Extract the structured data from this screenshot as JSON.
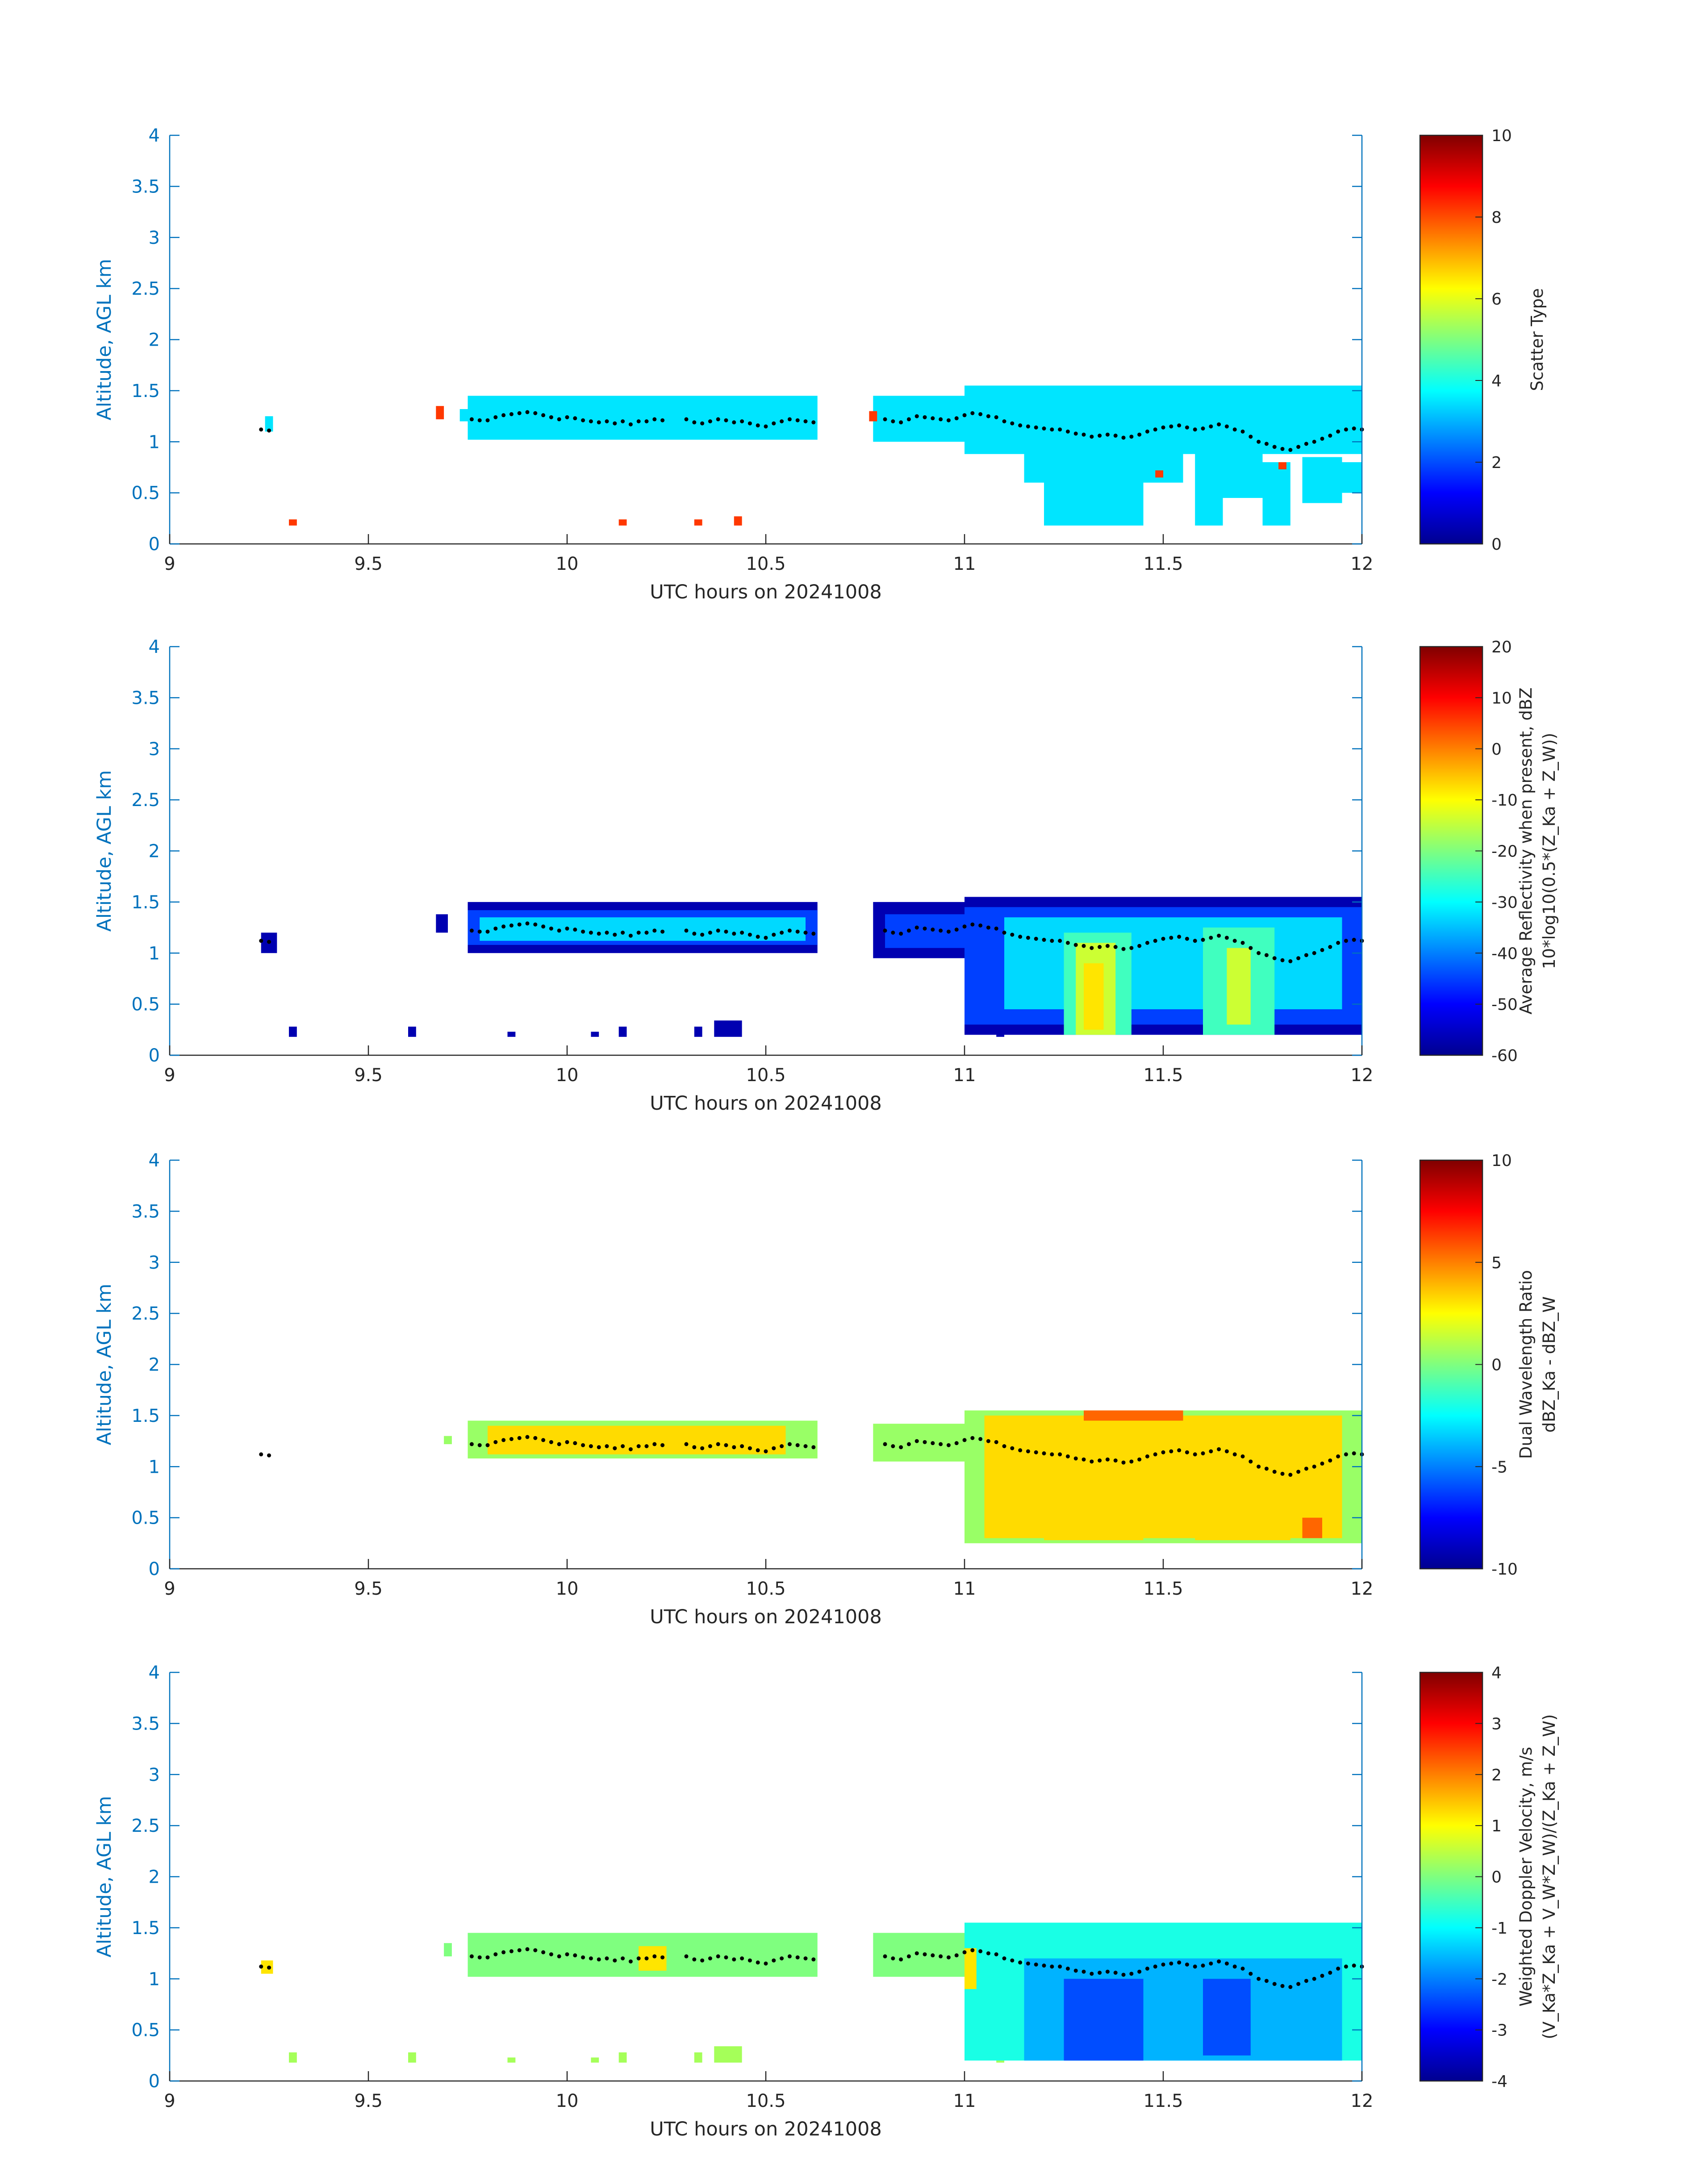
{
  "figure": {
    "date_label": "UTC hours on 20241008"
  },
  "chart_data": [
    {
      "type": "heatmap",
      "id": "scatter-type",
      "xlabel": "UTC hours on 20241008",
      "ylabel": "Altitude, AGL km",
      "xlim": [
        9,
        12
      ],
      "ylim": [
        0,
        4
      ],
      "xticks": [
        9,
        9.5,
        10,
        10.5,
        11,
        11.5,
        12
      ],
      "yticks": [
        0,
        0.5,
        1,
        1.5,
        2,
        2.5,
        3,
        3.5,
        4
      ],
      "colorbar": {
        "label_lines": [
          "Scatter Type"
        ],
        "min": 0,
        "max": 10,
        "ticks": [
          0,
          2,
          4,
          6,
          8,
          10
        ]
      },
      "layers": [
        {
          "value": 3.5,
          "segments": [
            [
              9.24,
              9.26,
              1.1,
              1.25
            ],
            [
              9.73,
              9.75,
              1.2,
              1.32
            ],
            [
              9.75,
              10.63,
              1.02,
              1.45
            ],
            [
              10.77,
              11.0,
              1.0,
              1.45
            ],
            [
              11.0,
              12.0,
              0.88,
              1.55
            ]
          ]
        },
        {
          "value": 3.5,
          "segments": [
            [
              11.05,
              11.15,
              0.9,
              1.05
            ],
            [
              11.15,
              11.2,
              0.6,
              0.9
            ],
            [
              11.2,
              11.45,
              0.18,
              1.0
            ],
            [
              11.45,
              11.55,
              0.6,
              0.9
            ],
            [
              11.58,
              11.65,
              0.18,
              1.0
            ],
            [
              11.65,
              11.75,
              0.45,
              0.95
            ],
            [
              11.75,
              11.82,
              0.18,
              0.8
            ],
            [
              11.85,
              11.95,
              0.4,
              0.85
            ],
            [
              11.95,
              12.0,
              0.5,
              0.8
            ]
          ]
        },
        {
          "value": 8.2,
          "segments": [
            [
              9.3,
              9.32,
              0.18,
              0.24
            ],
            [
              9.67,
              9.69,
              1.22,
              1.35
            ],
            [
              10.13,
              10.15,
              0.18,
              0.24
            ],
            [
              10.32,
              10.34,
              0.18,
              0.24
            ],
            [
              10.42,
              10.44,
              0.18,
              0.27
            ],
            [
              10.76,
              10.78,
              1.2,
              1.3
            ],
            [
              11.48,
              11.5,
              0.65,
              0.72
            ],
            [
              11.79,
              11.81,
              0.73,
              0.8
            ]
          ]
        }
      ]
    },
    {
      "type": "heatmap",
      "id": "average-reflectivity",
      "xlabel": "UTC hours on 20241008",
      "ylabel": "Altitude, AGL km",
      "xlim": [
        9,
        12
      ],
      "ylim": [
        0,
        4
      ],
      "xticks": [
        9,
        9.5,
        10,
        10.5,
        11,
        11.5,
        12
      ],
      "yticks": [
        0,
        0.5,
        1,
        1.5,
        2,
        2.5,
        3,
        3.5,
        4
      ],
      "colorbar": {
        "label_lines": [
          "Average Reflectivity when present, dBZ",
          "10*log10(0.5*(Z_Ka + Z_W))"
        ],
        "min": -60,
        "max": 20,
        "ticks": [
          -60,
          -50,
          -40,
          -30,
          -20,
          -10,
          0,
          10,
          20
        ]
      },
      "layers": [
        {
          "value": -57,
          "segments": [
            [
              9.23,
              9.27,
              1.0,
              1.2
            ],
            [
              9.3,
              9.32,
              0.18,
              0.28
            ],
            [
              9.6,
              9.62,
              0.18,
              0.28
            ],
            [
              9.67,
              9.7,
              1.2,
              1.38
            ],
            [
              9.75,
              10.63,
              1.0,
              1.5
            ],
            [
              10.77,
              11.0,
              0.95,
              1.5
            ],
            [
              11.0,
              12.0,
              0.2,
              1.55
            ],
            [
              9.85,
              9.87,
              0.18,
              0.23
            ],
            [
              10.06,
              10.08,
              0.18,
              0.23
            ],
            [
              10.13,
              10.15,
              0.18,
              0.28
            ],
            [
              10.32,
              10.34,
              0.18,
              0.28
            ],
            [
              10.37,
              10.44,
              0.18,
              0.34
            ],
            [
              11.08,
              11.1,
              0.18,
              0.28
            ]
          ]
        },
        {
          "value": -45,
          "segments": [
            [
              9.75,
              10.63,
              1.08,
              1.42
            ],
            [
              10.8,
              11.0,
              1.05,
              1.38
            ],
            [
              11.0,
              12.0,
              0.3,
              1.45
            ]
          ]
        },
        {
          "value": -33,
          "segments": [
            [
              9.78,
              10.6,
              1.12,
              1.35
            ],
            [
              11.1,
              11.95,
              0.45,
              1.35
            ]
          ]
        },
        {
          "value": -25,
          "segments": [
            [
              11.25,
              11.42,
              0.2,
              1.2
            ],
            [
              11.6,
              11.78,
              0.2,
              1.25
            ]
          ]
        },
        {
          "value": -14,
          "segments": [
            [
              11.28,
              11.38,
              0.2,
              1.1
            ],
            [
              11.66,
              11.72,
              0.3,
              1.05
            ]
          ]
        },
        {
          "value": -8,
          "segments": [
            [
              11.3,
              11.35,
              0.25,
              0.9
            ]
          ]
        }
      ]
    },
    {
      "type": "heatmap",
      "id": "dual-wavelength-ratio",
      "xlabel": "UTC hours on 20241008",
      "ylabel": "Altitude, AGL km",
      "xlim": [
        9,
        12
      ],
      "ylim": [
        0,
        4
      ],
      "xticks": [
        9,
        9.5,
        10,
        10.5,
        11,
        11.5,
        12
      ],
      "yticks": [
        0,
        0.5,
        1,
        1.5,
        2,
        2.5,
        3,
        3.5,
        4
      ],
      "colorbar": {
        "label_lines": [
          "Dual Wavelength Ratio",
          "dBZ_Ka - dBZ_W"
        ],
        "min": -10,
        "max": 10,
        "ticks": [
          -10,
          -5,
          0,
          5,
          10
        ]
      },
      "layers": [
        {
          "value": 0.5,
          "segments": [
            [
              9.69,
              9.71,
              1.22,
              1.3
            ],
            [
              9.75,
              10.63,
              1.08,
              1.45
            ],
            [
              10.77,
              11.0,
              1.05,
              1.42
            ],
            [
              11.0,
              12.0,
              0.25,
              1.55
            ]
          ]
        },
        {
          "value": 3.2,
          "segments": [
            [
              9.8,
              10.55,
              1.12,
              1.4
            ],
            [
              11.05,
              11.95,
              0.3,
              1.5
            ],
            [
              11.2,
              11.45,
              0.28,
              1.0
            ],
            [
              11.58,
              11.82,
              0.28,
              1.05
            ]
          ]
        },
        {
          "value": 5.5,
          "segments": [
            [
              11.3,
              11.55,
              1.45,
              1.55
            ],
            [
              11.85,
              11.9,
              0.3,
              0.5
            ]
          ]
        }
      ]
    },
    {
      "type": "heatmap",
      "id": "weighted-doppler-velocity",
      "xlabel": "UTC hours on 20241008",
      "ylabel": "Altitude, AGL km",
      "xlim": [
        9,
        12
      ],
      "ylim": [
        0,
        4
      ],
      "xticks": [
        9,
        9.5,
        10,
        10.5,
        11,
        11.5,
        12
      ],
      "yticks": [
        0,
        0.5,
        1,
        1.5,
        2,
        2.5,
        3,
        3.5,
        4
      ],
      "colorbar": {
        "label_lines": [
          "Weighted Doppler Velocity, m/s",
          "(V_Ka*Z_Ka + V_W*Z_W)/(Z_Ka + Z_W)"
        ],
        "min": -4,
        "max": 4,
        "ticks": [
          -4,
          -3,
          -2,
          -1,
          0,
          1,
          2,
          3,
          4
        ]
      },
      "layers": [
        {
          "value": 0.3,
          "segments": [
            [
              9.3,
              9.32,
              0.18,
              0.28
            ],
            [
              9.6,
              9.62,
              0.18,
              0.28
            ],
            [
              9.85,
              9.87,
              0.18,
              0.23
            ],
            [
              10.06,
              10.08,
              0.18,
              0.23
            ],
            [
              10.13,
              10.15,
              0.18,
              0.28
            ],
            [
              10.32,
              10.34,
              0.18,
              0.28
            ],
            [
              10.37,
              10.44,
              0.18,
              0.34
            ],
            [
              11.08,
              11.1,
              0.18,
              0.28
            ]
          ]
        },
        {
          "value": 0.0,
          "segments": [
            [
              9.69,
              9.71,
              1.22,
              1.35
            ],
            [
              9.75,
              10.63,
              1.02,
              1.45
            ],
            [
              10.77,
              11.0,
              1.02,
              1.45
            ]
          ]
        },
        {
          "value": -0.8,
          "segments": [
            [
              11.0,
              12.0,
              0.2,
              1.55
            ]
          ]
        },
        {
          "value": -1.6,
          "segments": [
            [
              11.15,
              11.95,
              0.2,
              1.2
            ]
          ]
        },
        {
          "value": -2.4,
          "segments": [
            [
              11.25,
              11.45,
              0.2,
              1.0
            ],
            [
              11.6,
              11.72,
              0.25,
              1.0
            ]
          ]
        },
        {
          "value": 1.2,
          "segments": [
            [
              10.18,
              10.25,
              1.08,
              1.32
            ],
            [
              11.0,
              11.03,
              0.9,
              1.3
            ],
            [
              9.23,
              9.26,
              1.05,
              1.18
            ]
          ]
        }
      ]
    }
  ],
  "dotted_trace": {
    "x": [
      9.23,
      9.25,
      9.76,
      9.78,
      9.8,
      9.82,
      9.84,
      9.86,
      9.88,
      9.9,
      9.92,
      9.94,
      9.96,
      9.98,
      10.0,
      10.02,
      10.04,
      10.06,
      10.08,
      10.1,
      10.12,
      10.14,
      10.16,
      10.18,
      10.2,
      10.22,
      10.24,
      10.3,
      10.32,
      10.34,
      10.36,
      10.38,
      10.4,
      10.42,
      10.44,
      10.46,
      10.48,
      10.5,
      10.52,
      10.54,
      10.56,
      10.58,
      10.6,
      10.62,
      10.8,
      10.82,
      10.84,
      10.86,
      10.88,
      10.9,
      10.92,
      10.94,
      10.96,
      10.98,
      11.0,
      11.02,
      11.04,
      11.06,
      11.08,
      11.1,
      11.12,
      11.14,
      11.16,
      11.18,
      11.2,
      11.22,
      11.24,
      11.26,
      11.28,
      11.3,
      11.32,
      11.34,
      11.36,
      11.38,
      11.4,
      11.42,
      11.44,
      11.46,
      11.48,
      11.5,
      11.52,
      11.54,
      11.56,
      11.58,
      11.6,
      11.62,
      11.64,
      11.66,
      11.68,
      11.7,
      11.72,
      11.74,
      11.76,
      11.78,
      11.8,
      11.82,
      11.84,
      11.86,
      11.88,
      11.9,
      11.92,
      11.94,
      11.96,
      11.98,
      12.0
    ],
    "y": [
      1.12,
      1.11,
      1.22,
      1.21,
      1.21,
      1.24,
      1.26,
      1.27,
      1.28,
      1.29,
      1.28,
      1.26,
      1.24,
      1.22,
      1.24,
      1.23,
      1.21,
      1.2,
      1.19,
      1.2,
      1.18,
      1.2,
      1.17,
      1.2,
      1.2,
      1.22,
      1.21,
      1.22,
      1.19,
      1.18,
      1.2,
      1.22,
      1.21,
      1.19,
      1.2,
      1.18,
      1.16,
      1.15,
      1.18,
      1.2,
      1.22,
      1.21,
      1.2,
      1.19,
      1.22,
      1.2,
      1.19,
      1.22,
      1.25,
      1.24,
      1.23,
      1.22,
      1.21,
      1.23,
      1.26,
      1.28,
      1.27,
      1.25,
      1.24,
      1.2,
      1.18,
      1.16,
      1.15,
      1.14,
      1.13,
      1.12,
      1.12,
      1.1,
      1.08,
      1.07,
      1.05,
      1.06,
      1.07,
      1.06,
      1.04,
      1.05,
      1.07,
      1.1,
      1.12,
      1.14,
      1.15,
      1.16,
      1.14,
      1.12,
      1.13,
      1.15,
      1.17,
      1.15,
      1.12,
      1.1,
      1.05,
      1.0,
      0.98,
      0.95,
      0.93,
      0.92,
      0.95,
      0.98,
      1.0,
      1.03,
      1.06,
      1.1,
      1.12,
      1.13,
      1.12
    ]
  }
}
